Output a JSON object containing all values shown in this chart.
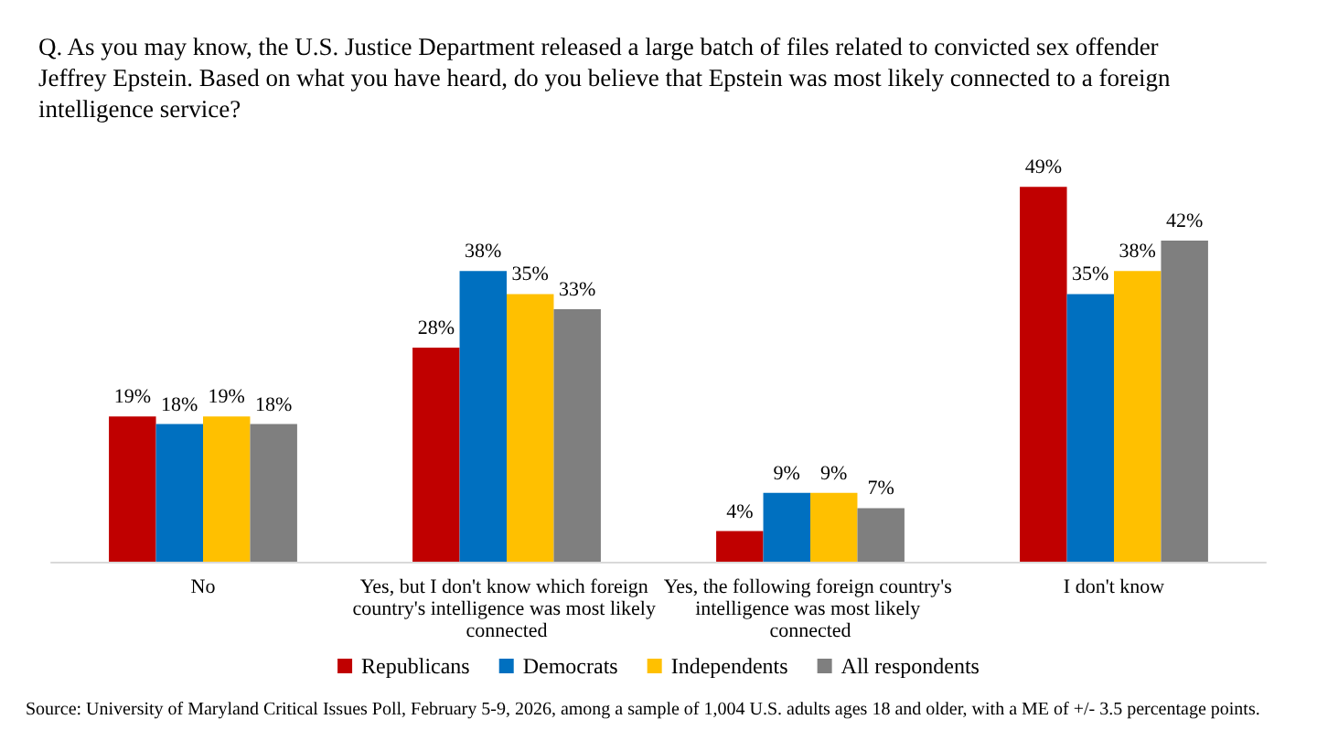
{
  "chart_data": {
    "type": "bar",
    "title": "Q. As you may know, the U.S. Justice Department released a large batch of files related to convicted sex offender Jeffrey Epstein. Based on what you have heard, do you believe that Epstein was most likely connected to a foreign intelligence service?",
    "categories": [
      "No",
      "Yes, but I don't know which foreign country's intelligence was most likely connected",
      "Yes, the following foreign country's intelligence was most likely connected",
      "I don't know"
    ],
    "series": [
      {
        "name": "Republicans",
        "color": "#c00000",
        "values": [
          19,
          28,
          4,
          49
        ],
        "value_labels": [
          "19%",
          "28%",
          "4%",
          "49%"
        ]
      },
      {
        "name": "Democrats",
        "color": "#0070c0",
        "values": [
          18,
          38,
          9,
          35
        ],
        "value_labels": [
          "18%",
          "38%",
          "9%",
          "35%"
        ]
      },
      {
        "name": "Independents",
        "color": "#ffc000",
        "values": [
          19,
          35,
          9,
          38
        ],
        "value_labels": [
          "19%",
          "35%",
          "9%",
          "38%"
        ]
      },
      {
        "name": "All respondents",
        "color": "#7f7f7f",
        "values": [
          18,
          33,
          7,
          42
        ],
        "value_labels": [
          "18%",
          "33%",
          "7%",
          "42%"
        ]
      }
    ],
    "legend": "bottom",
    "annotations": [
      "Source: University of Maryland Critical Issues Poll, February 5-9, 2026, among a sample of 1,004 U.S. adults ages 18 and older, with a ME of +/- 3.5 percentage points."
    ]
  }
}
